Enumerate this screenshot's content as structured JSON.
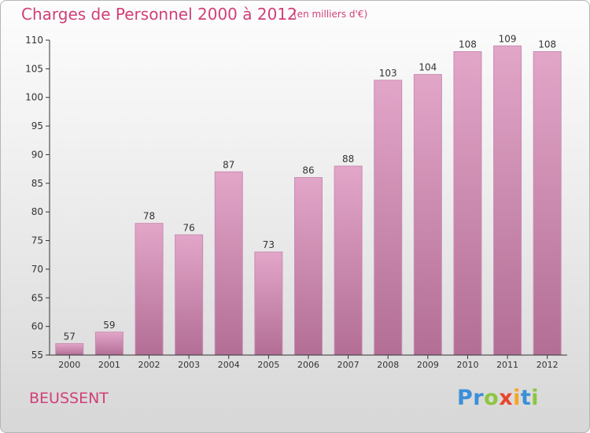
{
  "header": {
    "title": "Charges de Personnel 2000 à 2012",
    "unit": "(en milliers d'€)"
  },
  "place_name": "BEUSSENT",
  "logo": {
    "letters": [
      "P",
      "r",
      "o",
      "x",
      "i",
      "t",
      "i"
    ],
    "colors": [
      "#3a8fd8",
      "#3a8fd8",
      "#8cc63f",
      "#e8452c",
      "#f5a623",
      "#3a8fd8",
      "#8cc63f"
    ]
  },
  "colors": {
    "accent": "#d13f78",
    "bar_top": "#e2a6c9",
    "bar_bottom": "#b36e95",
    "bar_edge": "#c98cb0",
    "axis": "#333333",
    "tick_label": "#333333"
  },
  "chart_data": {
    "type": "bar",
    "title": "Charges de Personnel 2000 à 2012",
    "subtitle": "(en milliers d'€)",
    "categories": [
      "2000",
      "2001",
      "2002",
      "2003",
      "2004",
      "2005",
      "2006",
      "2007",
      "2008",
      "2009",
      "2010",
      "2011",
      "2012"
    ],
    "values": [
      57,
      59,
      78,
      76,
      87,
      73,
      86,
      88,
      103,
      104,
      108,
      109,
      108
    ],
    "data_labels": [
      "57",
      "59",
      "78",
      "76",
      "87",
      "73",
      "86",
      "88",
      "103",
      "104",
      "108",
      "109",
      "108"
    ],
    "ylim": [
      55,
      110
    ],
    "yticks": [
      55,
      60,
      65,
      70,
      75,
      80,
      85,
      90,
      95,
      100,
      105,
      110
    ],
    "xlabel": "",
    "ylabel": "",
    "grid": false,
    "legend": "none"
  }
}
